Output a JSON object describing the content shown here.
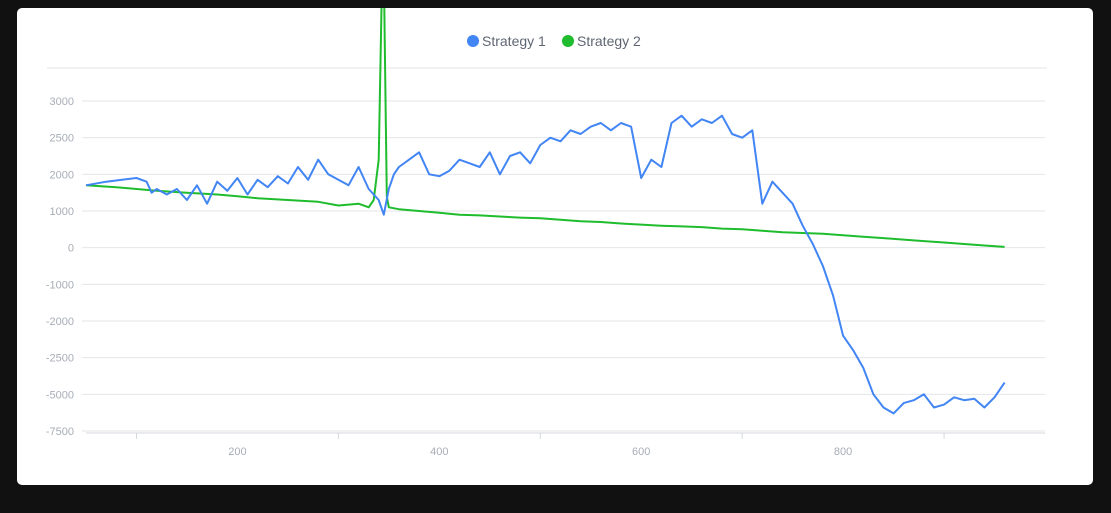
{
  "colors": {
    "strategy1": "#4285f4",
    "strategy2": "#1fbc2e",
    "grid": "#e4e6e9",
    "axis_text": "#a7adb7"
  },
  "chart_data": {
    "type": "line",
    "title": "",
    "xlabel": "",
    "ylabel": "",
    "legend": [
      "Strategy 1",
      "Strategy 2"
    ],
    "legend_position": "top-center",
    "grid": true,
    "xlim": [
      50,
      1000
    ],
    "ylim": [
      -7500,
      3000
    ],
    "x_ticks": [
      {
        "value": 200,
        "label": "200"
      },
      {
        "value": 400,
        "label": "400"
      },
      {
        "value": 600,
        "label": "600"
      },
      {
        "value": 800,
        "label": "800"
      }
    ],
    "y_ticks": [
      {
        "label": "3000",
        "value": 3000
      },
      {
        "label": "2500",
        "value": 2500
      },
      {
        "label": "2000",
        "value": 2000
      },
      {
        "label": "1000",
        "value": 1000
      },
      {
        "label": "0",
        "value": 0
      },
      {
        "label": "-1000",
        "value": -1000
      },
      {
        "label": "-2000",
        "value": -2000
      },
      {
        "label": "-2500",
        "value": -2500
      },
      {
        "label": "-5000",
        "value": -5000
      },
      {
        "label": "-7500",
        "value": -7500
      }
    ],
    "series": [
      {
        "name": "Strategy 1",
        "x": [
          50,
          70,
          100,
          110,
          115,
          120,
          130,
          140,
          150,
          160,
          170,
          180,
          190,
          200,
          210,
          220,
          230,
          240,
          250,
          260,
          270,
          280,
          290,
          300,
          310,
          320,
          330,
          340,
          345,
          350,
          355,
          360,
          370,
          380,
          390,
          400,
          410,
          420,
          430,
          440,
          450,
          460,
          470,
          480,
          490,
          500,
          510,
          520,
          530,
          540,
          550,
          560,
          570,
          580,
          590,
          600,
          610,
          620,
          630,
          640,
          650,
          660,
          670,
          680,
          690,
          700,
          710,
          720,
          730,
          740,
          750,
          760,
          770,
          780,
          790,
          800,
          810,
          820,
          830,
          840,
          850,
          860,
          870,
          880,
          890,
          900,
          910,
          920,
          930,
          940,
          950,
          960
        ],
        "y": [
          1700,
          1800,
          1900,
          1800,
          1500,
          1600,
          1450,
          1600,
          1300,
          1700,
          1200,
          1800,
          1550,
          1900,
          1450,
          1850,
          1650,
          1950,
          1750,
          2100,
          1850,
          2200,
          2000,
          1850,
          1700,
          2100,
          1600,
          1300,
          900,
          1600,
          2000,
          2100,
          2200,
          2300,
          2000,
          1950,
          2050,
          2200,
          2150,
          2100,
          2300,
          2000,
          2250,
          2300,
          2150,
          2400,
          2500,
          2450,
          2600,
          2550,
          2650,
          2700,
          2600,
          2700,
          2650,
          1900,
          2200,
          2100,
          2700,
          2800,
          2650,
          2750,
          2700,
          2800,
          2550,
          2500,
          2600,
          1200,
          1800,
          1500,
          1200,
          600,
          100,
          -500,
          -1300,
          -2200,
          -2400,
          -3200,
          -5000,
          -5900,
          -6300,
          -5600,
          -5400,
          -5000,
          -5900,
          -5700,
          -5200,
          -5400,
          -5300,
          -5900,
          -5200,
          -4200
        ],
        "values_note": ""
      },
      {
        "name": "Strategy 2",
        "x": [
          50,
          80,
          100,
          120,
          150,
          180,
          200,
          220,
          250,
          280,
          300,
          320,
          330,
          335,
          340,
          343,
          345,
          348,
          350,
          360,
          380,
          400,
          420,
          440,
          460,
          480,
          500,
          520,
          540,
          560,
          580,
          600,
          620,
          640,
          660,
          680,
          700,
          720,
          740,
          760,
          780,
          800,
          820,
          840,
          860,
          880,
          900,
          920,
          940,
          960
        ],
        "y": [
          1700,
          1650,
          1600,
          1550,
          1500,
          1450,
          1400,
          1350,
          1300,
          1250,
          1150,
          1200,
          1100,
          1300,
          2200,
          4500,
          4800,
          1400,
          1100,
          1050,
          1000,
          950,
          900,
          880,
          850,
          820,
          800,
          760,
          720,
          700,
          660,
          630,
          600,
          580,
          560,
          520,
          500,
          460,
          420,
          400,
          380,
          340,
          300,
          260,
          220,
          180,
          140,
          100,
          60,
          20
        ]
      }
    ]
  }
}
